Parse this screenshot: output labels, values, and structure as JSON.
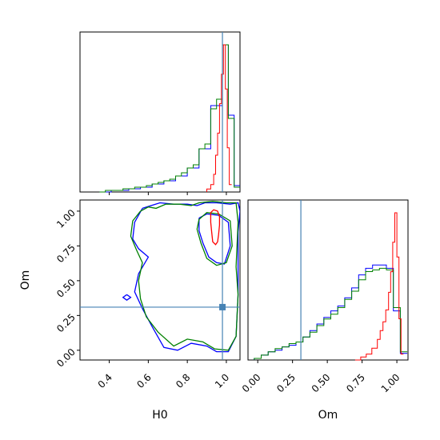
{
  "chart_data": [
    {
      "type": "histogram",
      "panel": "H0-marginal",
      "xlim": [
        0.25,
        1.07
      ],
      "truth_line": 0.98,
      "colors": {
        "red": "#ff0000",
        "blue": "#0000ff",
        "green": "#008000",
        "truth": "#4682b4"
      },
      "bins_x": [
        0.35,
        0.38,
        0.41,
        0.44,
        0.47,
        0.5,
        0.53,
        0.56,
        0.59,
        0.62,
        0.65,
        0.68,
        0.71,
        0.74,
        0.77,
        0.8,
        0.83,
        0.86,
        0.89,
        0.92,
        0.95,
        0.98,
        1.01,
        1.04,
        1.07
      ],
      "series": [
        {
          "color": "blue",
          "values": [
            0,
            0,
            1,
            1,
            1,
            2,
            2,
            3,
            3,
            5,
            5,
            7,
            7,
            10,
            10,
            15,
            15,
            27,
            27,
            54,
            54,
            92,
            48,
            4
          ]
        },
        {
          "color": "green",
          "values": [
            0,
            1,
            1,
            1,
            2,
            2,
            3,
            3,
            4,
            5,
            6,
            7,
            8,
            10,
            12,
            15,
            17,
            27,
            30,
            52,
            58,
            92,
            46,
            3
          ]
        }
      ],
      "red_series": {
        "x": [
          0.9,
          0.92,
          0.935,
          0.945,
          0.955,
          0.965,
          0.975,
          0.985,
          0.995,
          1.005,
          1.015
        ],
        "values": [
          2,
          5,
          12,
          25,
          40,
          60,
          80,
          100,
          70,
          30,
          5
        ]
      }
    },
    {
      "type": "contour",
      "panel": "H0-Om-joint",
      "xlim": [
        0.25,
        1.07
      ],
      "ylim": [
        -0.07,
        1.08
      ],
      "truth_point": [
        0.98,
        0.31
      ],
      "ylabel": "Om",
      "xlabel": "H0",
      "x_ticks": [
        "0.4",
        "0.6",
        "0.8",
        "1.0"
      ],
      "y_ticks": [
        "0.00",
        "0.25",
        "0.50",
        "0.75",
        "1.00"
      ],
      "series": [
        {
          "color": "blue",
          "paths": [
            [
              [
                0.49,
                0.4
              ],
              [
                0.51,
                0.38
              ],
              [
                0.49,
                0.36
              ],
              [
                0.47,
                0.38
              ],
              [
                0.49,
                0.4
              ]
            ],
            [
              [
                0.57,
                1.02
              ],
              [
                0.66,
                1.06
              ],
              [
                0.73,
                1.05
              ],
              [
                0.8,
                1.05
              ],
              [
                0.85,
                1.04
              ],
              [
                0.89,
                1.06
              ],
              [
                0.95,
                1.06
              ],
              [
                1.02,
                1.05
              ],
              [
                1.06,
                1.06
              ],
              [
                1.07,
                1.0
              ],
              [
                1.06,
                0.85
              ],
              [
                1.06,
                0.4
              ],
              [
                1.05,
                0.1
              ],
              [
                1.01,
                -0.01
              ],
              [
                0.95,
                -0.01
              ],
              [
                0.9,
                0.03
              ],
              [
                0.82,
                0.05
              ],
              [
                0.75,
                0.0
              ],
              [
                0.68,
                0.02
              ],
              [
                0.62,
                0.17
              ],
              [
                0.57,
                0.3
              ],
              [
                0.53,
                0.42
              ],
              [
                0.55,
                0.55
              ],
              [
                0.6,
                0.67
              ],
              [
                0.55,
                0.73
              ],
              [
                0.52,
                0.8
              ],
              [
                0.53,
                0.92
              ],
              [
                0.57,
                1.02
              ]
            ],
            [
              [
                0.86,
                0.95
              ],
              [
                0.9,
                0.98
              ],
              [
                0.96,
                0.97
              ],
              [
                1.01,
                0.92
              ],
              [
                1.02,
                0.75
              ],
              [
                0.99,
                0.62
              ],
              [
                0.95,
                0.63
              ],
              [
                0.91,
                0.67
              ],
              [
                0.88,
                0.77
              ],
              [
                0.86,
                0.86
              ],
              [
                0.86,
                0.95
              ]
            ]
          ]
        },
        {
          "color": "green",
          "paths": [
            [
              [
                0.56,
                1.0
              ],
              [
                0.6,
                1.03
              ],
              [
                0.64,
                1.02
              ],
              [
                0.69,
                1.05
              ],
              [
                0.76,
                1.05
              ],
              [
                0.82,
                1.04
              ],
              [
                0.86,
                1.06
              ],
              [
                0.93,
                1.07
              ],
              [
                1.0,
                1.06
              ],
              [
                1.05,
                1.06
              ],
              [
                1.06,
                0.92
              ],
              [
                1.05,
                0.6
              ],
              [
                1.06,
                0.4
              ],
              [
                1.05,
                0.1
              ],
              [
                1.01,
                0.0
              ],
              [
                0.94,
                0.01
              ],
              [
                0.88,
                0.06
              ],
              [
                0.8,
                0.08
              ],
              [
                0.73,
                0.03
              ],
              [
                0.65,
                0.13
              ],
              [
                0.59,
                0.24
              ],
              [
                0.56,
                0.37
              ],
              [
                0.55,
                0.5
              ],
              [
                0.57,
                0.63
              ],
              [
                0.54,
                0.72
              ],
              [
                0.51,
                0.82
              ],
              [
                0.52,
                0.93
              ],
              [
                0.56,
                1.0
              ]
            ],
            [
              [
                0.86,
                0.94
              ],
              [
                0.9,
                0.99
              ],
              [
                0.96,
                0.98
              ],
              [
                1.02,
                0.93
              ],
              [
                1.03,
                0.75
              ],
              [
                1.0,
                0.63
              ],
              [
                0.95,
                0.61
              ],
              [
                0.9,
                0.66
              ],
              [
                0.87,
                0.77
              ],
              [
                0.85,
                0.87
              ],
              [
                0.86,
                0.94
              ]
            ]
          ]
        },
        {
          "color": "red",
          "paths": [
            [
              [
                0.92,
                0.99
              ],
              [
                0.935,
                1.01
              ],
              [
                0.955,
                1.0
              ],
              [
                0.965,
                0.96
              ],
              [
                0.965,
                0.9
              ],
              [
                0.96,
                0.83
              ],
              [
                0.955,
                0.78
              ],
              [
                0.945,
                0.76
              ],
              [
                0.93,
                0.78
              ],
              [
                0.925,
                0.85
              ],
              [
                0.92,
                0.92
              ],
              [
                0.92,
                0.99
              ]
            ]
          ]
        }
      ]
    },
    {
      "type": "histogram",
      "panel": "Om-marginal",
      "xlim": [
        -0.07,
        1.08
      ],
      "truth_line": 0.31,
      "xlabel": "Om",
      "x_ticks": [
        "0.00",
        "0.25",
        "0.50",
        "0.75",
        "1.00"
      ],
      "bins_x": [
        -0.025,
        0.025,
        0.075,
        0.125,
        0.175,
        0.225,
        0.275,
        0.325,
        0.375,
        0.425,
        0.475,
        0.525,
        0.575,
        0.625,
        0.675,
        0.725,
        0.775,
        0.825,
        0.875,
        0.925,
        0.975,
        1.025,
        1.075
      ],
      "series": [
        {
          "color": "blue",
          "values": [
            1,
            3,
            5,
            6,
            8,
            9,
            11,
            14,
            18,
            22,
            26,
            30,
            33,
            38,
            44,
            52,
            56,
            58,
            58,
            56,
            30,
            4
          ]
        },
        {
          "color": "green",
          "values": [
            1,
            3,
            5,
            7,
            8,
            10,
            11,
            14,
            17,
            21,
            25,
            28,
            32,
            37,
            42,
            49,
            54,
            55,
            56,
            55,
            32,
            5
          ]
        }
      ],
      "red_series": {
        "x": [
          0.7,
          0.74,
          0.78,
          0.82,
          0.86,
          0.88,
          0.9,
          0.92,
          0.94,
          0.955,
          0.97,
          0.985,
          1.0,
          1.015,
          1.03
        ],
        "values": [
          0,
          2,
          4,
          8,
          14,
          20,
          26,
          34,
          46,
          60,
          80,
          100,
          70,
          28,
          4
        ]
      }
    }
  ]
}
